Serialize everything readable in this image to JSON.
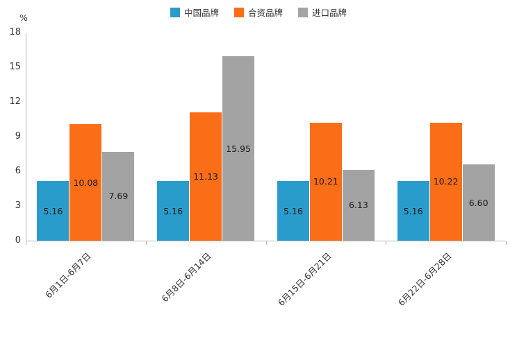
{
  "chart_data": {
    "type": "bar",
    "title": "",
    "xlabel": "",
    "ylabel": "%",
    "ylim": [
      0,
      18
    ],
    "yticks": [
      0,
      3,
      6,
      9,
      12,
      15,
      18
    ],
    "grid": false,
    "legend_position": "top-center",
    "categories": [
      "6月1日-6月7日",
      "6月8日-6月14日",
      "6月15日-6月21日",
      "6月22日-6月28日"
    ],
    "series": [
      {
        "name": "中国品牌",
        "color": "#2a9ccb",
        "values": [
          5.16,
          5.16,
          5.16,
          5.16
        ]
      },
      {
        "name": "合资品牌",
        "color": "#fa6e17",
        "values": [
          10.08,
          11.13,
          10.21,
          10.22
        ]
      },
      {
        "name": "进口品牌",
        "color": "#a3a3a3",
        "values": [
          7.69,
          15.95,
          6.13,
          6.6
        ]
      }
    ],
    "data_labels": true,
    "axis_color": "#b7b7b7",
    "label_color": "#333333"
  }
}
